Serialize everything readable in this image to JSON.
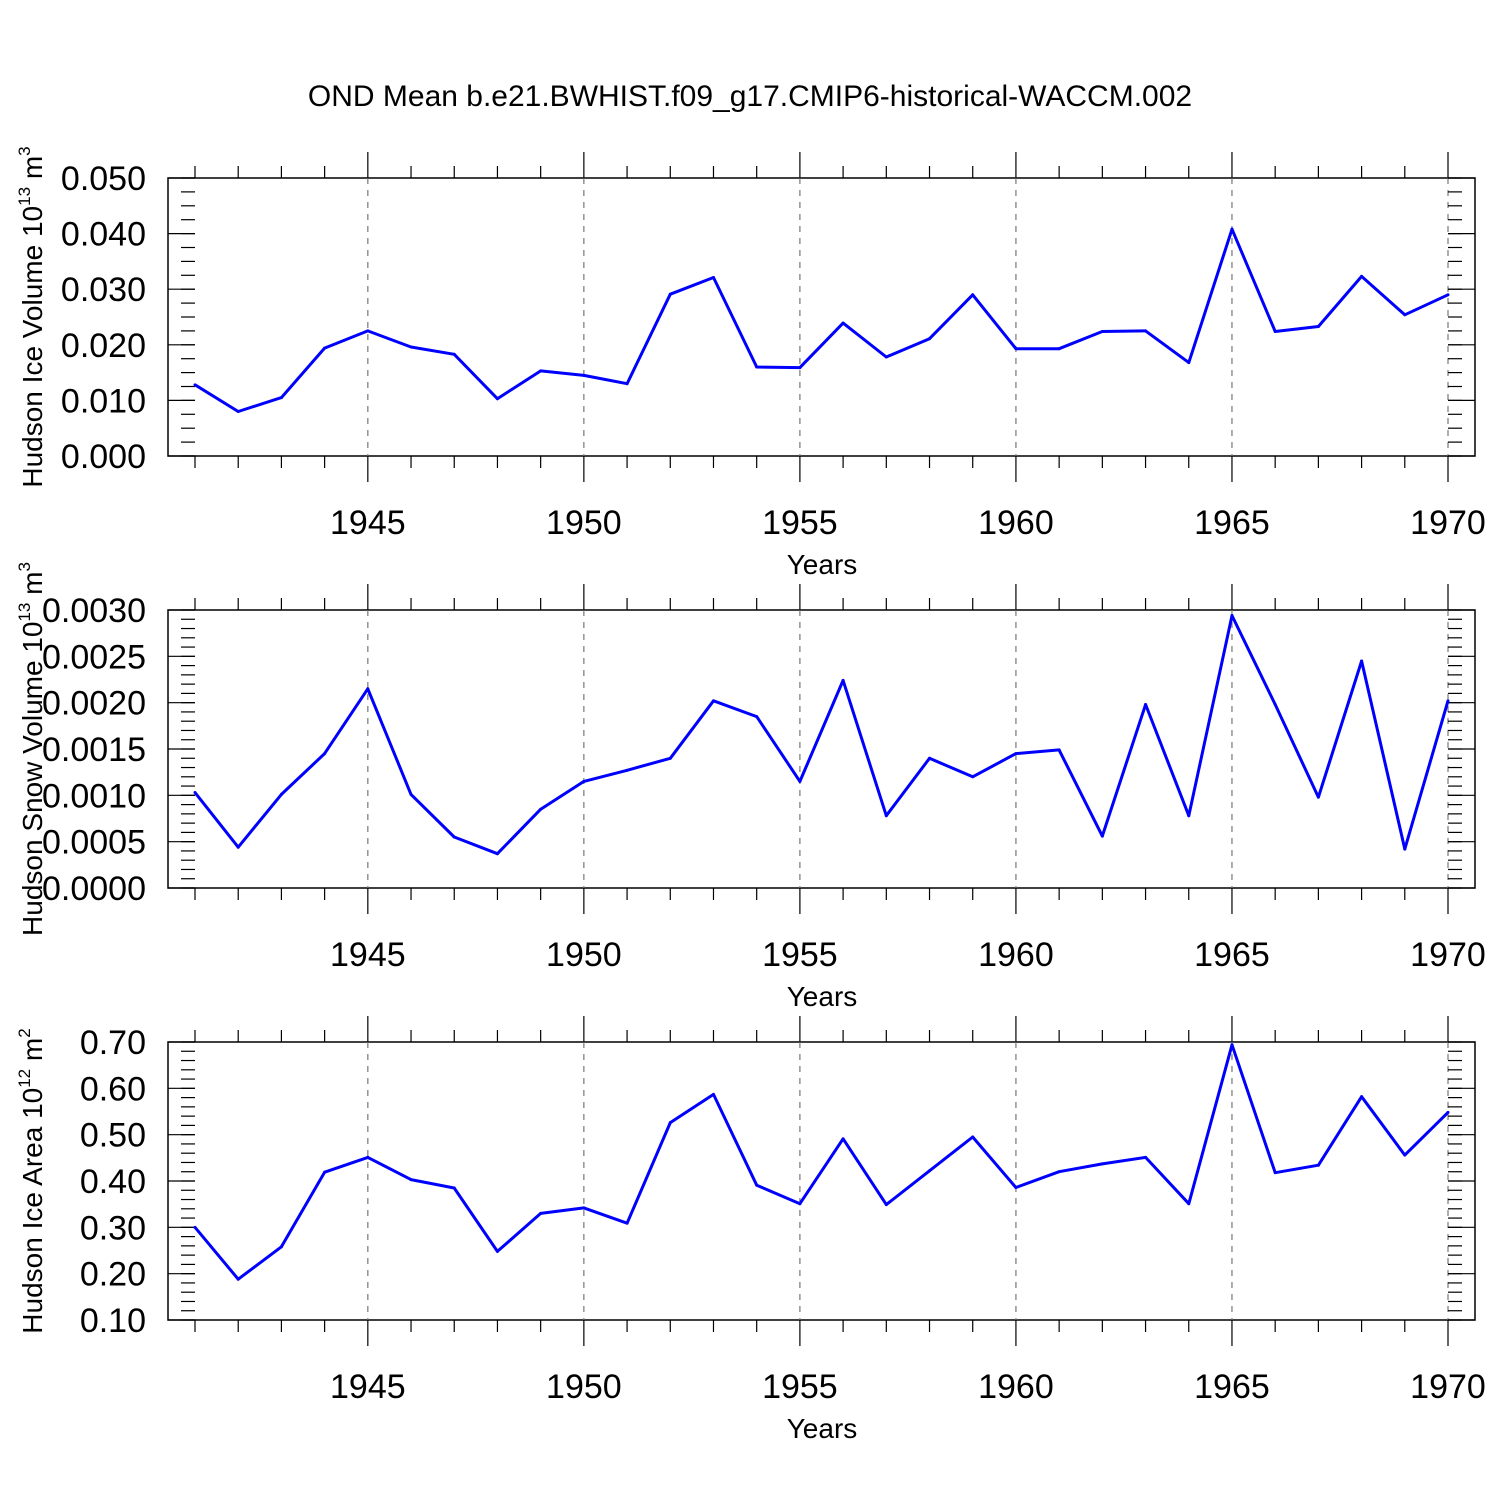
{
  "figure": {
    "title": "OND Mean b.e21.BWHIST.f09_g17.CMIP6-historical-WACCM.002"
  },
  "chart_data": [
    {
      "type": "line",
      "title": "",
      "xlabel": "Years",
      "ylabel_main": "Hudson Ice Volume 10",
      "ylabel_exp": "13",
      "ylabel_unit": " m",
      "ylabel_unit_exp": "3",
      "xlim": [
        1941,
        1970
      ],
      "ylim": [
        0.0,
        0.05
      ],
      "yticks": [
        0.0,
        0.01,
        0.02,
        0.03,
        0.04,
        0.05
      ],
      "ytick_labels": [
        "0.000",
        "0.010",
        "0.020",
        "0.030",
        "0.040",
        "0.050"
      ],
      "yminor_step": 0.0025,
      "xticks": [
        1945,
        1950,
        1955,
        1960,
        1965,
        1970
      ],
      "xtick_labels": [
        "1945",
        "1950",
        "1955",
        "1960",
        "1965",
        "1970"
      ],
      "grid": "x-dashed",
      "series": [
        {
          "name": "Hudson Ice Volume",
          "color": "#0000ff",
          "x": [
            1941,
            1942,
            1943,
            1944,
            1945,
            1946,
            1947,
            1948,
            1949,
            1950,
            1951,
            1952,
            1953,
            1954,
            1955,
            1956,
            1957,
            1958,
            1959,
            1960,
            1961,
            1962,
            1963,
            1964,
            1965,
            1966,
            1967,
            1968,
            1969,
            1970
          ],
          "values": [
            0.0128,
            0.008,
            0.0105,
            0.0194,
            0.0225,
            0.0196,
            0.0183,
            0.0103,
            0.0153,
            0.0145,
            0.013,
            0.0291,
            0.0321,
            0.016,
            0.0159,
            0.0239,
            0.0178,
            0.0211,
            0.029,
            0.0193,
            0.0193,
            0.0224,
            0.0225,
            0.0168,
            0.0408,
            0.0224,
            0.0233,
            0.0323,
            0.0254,
            0.029
          ]
        }
      ]
    },
    {
      "type": "line",
      "title": "",
      "xlabel": "Years",
      "ylabel_main": "Hudson Snow Volume 10",
      "ylabel_exp": "13",
      "ylabel_unit": " m",
      "ylabel_unit_exp": "3",
      "xlim": [
        1941,
        1970
      ],
      "ylim": [
        0.0,
        0.003
      ],
      "yticks": [
        0.0,
        0.0005,
        0.001,
        0.0015,
        0.002,
        0.0025,
        0.003
      ],
      "ytick_labels": [
        "0.0000",
        "0.0005",
        "0.0010",
        "0.0015",
        "0.0020",
        "0.0025",
        "0.0030"
      ],
      "yminor_step": 0.0001,
      "xticks": [
        1945,
        1950,
        1955,
        1960,
        1965,
        1970
      ],
      "xtick_labels": [
        "1945",
        "1950",
        "1955",
        "1960",
        "1965",
        "1970"
      ],
      "grid": "x-dashed",
      "series": [
        {
          "name": "Hudson Snow Volume",
          "color": "#0000ff",
          "x": [
            1941,
            1942,
            1943,
            1944,
            1945,
            1946,
            1947,
            1948,
            1949,
            1950,
            1951,
            1952,
            1953,
            1954,
            1955,
            1956,
            1957,
            1958,
            1959,
            1960,
            1961,
            1962,
            1963,
            1964,
            1965,
            1966,
            1967,
            1968,
            1969,
            1970
          ],
          "values": [
            0.00103,
            0.00044,
            0.00101,
            0.00145,
            0.00215,
            0.00101,
            0.00055,
            0.00037,
            0.00085,
            0.00115,
            0.00127,
            0.0014,
            0.00202,
            0.00185,
            0.00115,
            0.00224,
            0.00078,
            0.0014,
            0.0012,
            0.00145,
            0.00149,
            0.00056,
            0.00198,
            0.00078,
            0.00294,
            0.00198,
            0.00098,
            0.00245,
            0.00042,
            0.00202
          ]
        }
      ]
    },
    {
      "type": "line",
      "title": "",
      "xlabel": "Years",
      "ylabel_main": "Hudson Ice Area 10",
      "ylabel_exp": "12",
      "ylabel_unit": " m",
      "ylabel_unit_exp": "2",
      "xlim": [
        1941,
        1970
      ],
      "ylim": [
        0.1,
        0.7
      ],
      "yticks": [
        0.1,
        0.2,
        0.3,
        0.4,
        0.5,
        0.6,
        0.7
      ],
      "ytick_labels": [
        "0.10",
        "0.20",
        "0.30",
        "0.40",
        "0.50",
        "0.60",
        "0.70"
      ],
      "yminor_step": 0.02,
      "xticks": [
        1945,
        1950,
        1955,
        1960,
        1965,
        1970
      ],
      "xtick_labels": [
        "1945",
        "1950",
        "1955",
        "1960",
        "1965",
        "1970"
      ],
      "grid": "x-dashed",
      "series": [
        {
          "name": "Hudson Ice Area",
          "color": "#0000ff",
          "x": [
            1941,
            1942,
            1943,
            1944,
            1945,
            1946,
            1947,
            1948,
            1949,
            1950,
            1951,
            1952,
            1953,
            1954,
            1955,
            1956,
            1957,
            1958,
            1959,
            1960,
            1961,
            1962,
            1963,
            1964,
            1965,
            1966,
            1967,
            1968,
            1969,
            1970
          ],
          "values": [
            0.3,
            0.188,
            0.258,
            0.419,
            0.451,
            0.403,
            0.385,
            0.248,
            0.33,
            0.342,
            0.309,
            0.526,
            0.587,
            0.391,
            0.351,
            0.491,
            0.349,
            0.422,
            0.495,
            0.386,
            0.42,
            0.437,
            0.451,
            0.351,
            0.694,
            0.418,
            0.434,
            0.582,
            0.456,
            0.548
          ]
        }
      ]
    }
  ]
}
